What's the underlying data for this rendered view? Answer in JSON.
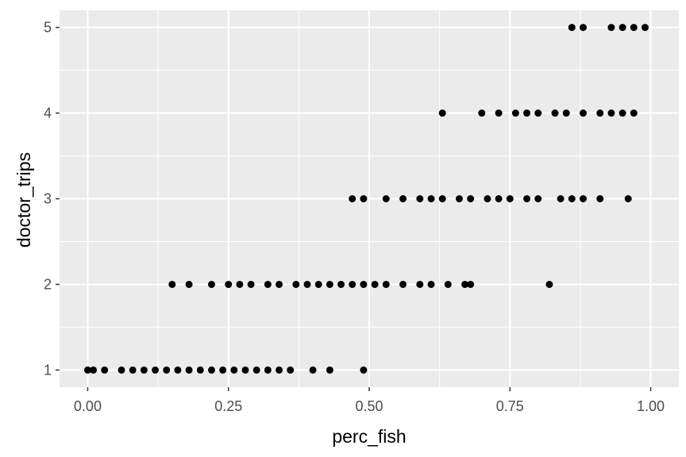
{
  "chart_data": {
    "type": "scatter",
    "xlabel": "perc_fish",
    "ylabel": "doctor_trips",
    "xlim": [
      -0.05,
      1.05
    ],
    "ylim": [
      0.8,
      5.2
    ],
    "x_ticks": [
      "0.00",
      "0.25",
      "0.50",
      "0.75",
      "1.00"
    ],
    "x_tick_values": [
      0,
      0.25,
      0.5,
      0.75,
      1.0
    ],
    "y_ticks": [
      "1",
      "2",
      "3",
      "4",
      "5"
    ],
    "y_tick_values": [
      1,
      2,
      3,
      4,
      5
    ],
    "grid": true,
    "colors": {
      "panel": "#ebebeb",
      "grid": "#ffffff",
      "point": "#000000"
    },
    "series": [
      {
        "points": [
          [
            0.0,
            1
          ],
          [
            0.01,
            1
          ],
          [
            0.03,
            1
          ],
          [
            0.06,
            1
          ],
          [
            0.08,
            1
          ],
          [
            0.1,
            1
          ],
          [
            0.12,
            1
          ],
          [
            0.14,
            1
          ],
          [
            0.16,
            1
          ],
          [
            0.18,
            1
          ],
          [
            0.2,
            1
          ],
          [
            0.22,
            1
          ],
          [
            0.24,
            1
          ],
          [
            0.26,
            1
          ],
          [
            0.28,
            1
          ],
          [
            0.3,
            1
          ],
          [
            0.32,
            1
          ],
          [
            0.34,
            1
          ],
          [
            0.36,
            1
          ],
          [
            0.4,
            1
          ],
          [
            0.43,
            1
          ],
          [
            0.49,
            1
          ],
          [
            0.15,
            2
          ],
          [
            0.18,
            2
          ],
          [
            0.22,
            2
          ],
          [
            0.25,
            2
          ],
          [
            0.27,
            2
          ],
          [
            0.29,
            2
          ],
          [
            0.32,
            2
          ],
          [
            0.34,
            2
          ],
          [
            0.37,
            2
          ],
          [
            0.39,
            2
          ],
          [
            0.41,
            2
          ],
          [
            0.43,
            2
          ],
          [
            0.45,
            2
          ],
          [
            0.47,
            2
          ],
          [
            0.49,
            2
          ],
          [
            0.51,
            2
          ],
          [
            0.53,
            2
          ],
          [
            0.56,
            2
          ],
          [
            0.59,
            2
          ],
          [
            0.61,
            2
          ],
          [
            0.64,
            2
          ],
          [
            0.67,
            2
          ],
          [
            0.68,
            2
          ],
          [
            0.82,
            2
          ],
          [
            0.47,
            3
          ],
          [
            0.49,
            3
          ],
          [
            0.53,
            3
          ],
          [
            0.56,
            3
          ],
          [
            0.59,
            3
          ],
          [
            0.61,
            3
          ],
          [
            0.63,
            3
          ],
          [
            0.66,
            3
          ],
          [
            0.68,
            3
          ],
          [
            0.71,
            3
          ],
          [
            0.73,
            3
          ],
          [
            0.75,
            3
          ],
          [
            0.78,
            3
          ],
          [
            0.8,
            3
          ],
          [
            0.84,
            3
          ],
          [
            0.86,
            3
          ],
          [
            0.88,
            3
          ],
          [
            0.91,
            3
          ],
          [
            0.96,
            3
          ],
          [
            0.63,
            4
          ],
          [
            0.7,
            4
          ],
          [
            0.73,
            4
          ],
          [
            0.76,
            4
          ],
          [
            0.78,
            4
          ],
          [
            0.8,
            4
          ],
          [
            0.83,
            4
          ],
          [
            0.85,
            4
          ],
          [
            0.88,
            4
          ],
          [
            0.91,
            4
          ],
          [
            0.93,
            4
          ],
          [
            0.95,
            4
          ],
          [
            0.97,
            4
          ],
          [
            0.86,
            5
          ],
          [
            0.88,
            5
          ],
          [
            0.93,
            5
          ],
          [
            0.95,
            5
          ],
          [
            0.97,
            5
          ],
          [
            0.99,
            5
          ]
        ]
      }
    ]
  }
}
